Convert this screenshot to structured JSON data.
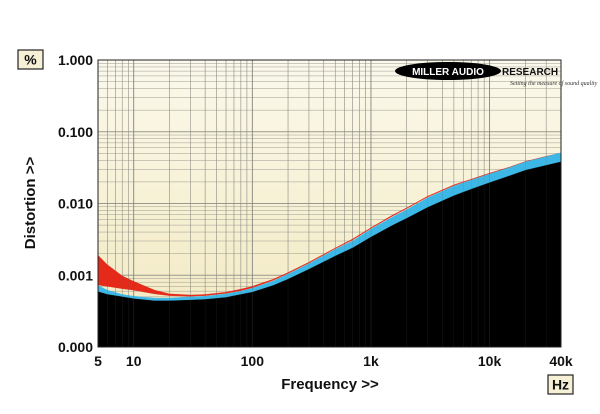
{
  "chart_data": {
    "type": "area",
    "title": "",
    "xlabel": "Frequency >>",
    "ylabel": "Distortion >>",
    "x_unit": "Hz",
    "y_unit": "%",
    "x_scale": "log",
    "y_scale": "log",
    "xlim": [
      5,
      40000
    ],
    "ylim": [
      0.0001,
      1
    ],
    "x_ticks": [
      {
        "value": 5,
        "label": "5"
      },
      {
        "value": 10,
        "label": "10"
      },
      {
        "value": 100,
        "label": "100"
      },
      {
        "value": 1000,
        "label": "1k"
      },
      {
        "value": 10000,
        "label": "10k"
      },
      {
        "value": 40000,
        "label": "40k"
      }
    ],
    "y_ticks": [
      {
        "value": 0.0001,
        "label": "0.000"
      },
      {
        "value": 0.001,
        "label": "0.001"
      },
      {
        "value": 0.01,
        "label": "0.010"
      },
      {
        "value": 0.1,
        "label": "0.100"
      },
      {
        "value": 1,
        "label": "1.000"
      }
    ],
    "grid": true,
    "series": [
      {
        "color": "#e52a1a",
        "upper": [
          [
            5,
            0.0019
          ],
          [
            6,
            0.0014
          ],
          [
            8,
            0.00098
          ],
          [
            10,
            0.00082
          ],
          [
            15,
            0.00062
          ],
          [
            20,
            0.00055
          ],
          [
            30,
            0.00053
          ],
          [
            40,
            0.00054
          ],
          [
            60,
            0.00058
          ],
          [
            80,
            0.00064
          ],
          [
            100,
            0.0007
          ],
          [
            150,
            0.00088
          ],
          [
            200,
            0.00109
          ],
          [
            300,
            0.00152
          ],
          [
            500,
            0.0024
          ],
          [
            700,
            0.0032
          ],
          [
            1000,
            0.0046
          ],
          [
            1500,
            0.0068
          ],
          [
            2000,
            0.0087
          ],
          [
            3000,
            0.0126
          ],
          [
            5000,
            0.0182
          ],
          [
            7000,
            0.0218
          ],
          [
            10000,
            0.0265
          ],
          [
            15000,
            0.0325
          ],
          [
            20000,
            0.0385
          ],
          [
            30000,
            0.0455
          ],
          [
            40000,
            0.0505
          ]
        ],
        "lower": [
          [
            5,
            0.00073
          ],
          [
            6,
            0.0007
          ],
          [
            8,
            0.00065
          ],
          [
            10,
            0.00062
          ],
          [
            15,
            0.00055
          ],
          [
            20,
            0.00052
          ],
          [
            30,
            0.00051
          ],
          [
            40,
            0.00052
          ],
          [
            60,
            0.00056
          ],
          [
            80,
            0.00061
          ],
          [
            100,
            0.00067
          ],
          [
            150,
            0.00085
          ],
          [
            200,
            0.00106
          ],
          [
            300,
            0.00148
          ],
          [
            500,
            0.00235
          ],
          [
            700,
            0.0031
          ],
          [
            1000,
            0.0045
          ],
          [
            1500,
            0.0066
          ],
          [
            2000,
            0.0085
          ],
          [
            3000,
            0.0123
          ],
          [
            5000,
            0.0178
          ],
          [
            7000,
            0.0214
          ],
          [
            10000,
            0.026
          ],
          [
            15000,
            0.032
          ],
          [
            20000,
            0.038
          ],
          [
            30000,
            0.045
          ],
          [
            40000,
            0.05
          ]
        ]
      },
      {
        "color": "#3db8e6",
        "upper": [
          [
            5,
            0.00072
          ],
          [
            6,
            0.00062
          ],
          [
            8,
            0.00054
          ],
          [
            10,
            0.00051
          ],
          [
            15,
            0.00048
          ],
          [
            20,
            0.00048
          ],
          [
            30,
            0.0005
          ],
          [
            40,
            0.00051
          ],
          [
            60,
            0.00055
          ],
          [
            80,
            0.0006
          ],
          [
            100,
            0.00066
          ],
          [
            150,
            0.00083
          ],
          [
            200,
            0.00104
          ],
          [
            300,
            0.00145
          ],
          [
            500,
            0.0023
          ],
          [
            700,
            0.003
          ],
          [
            1000,
            0.0044
          ],
          [
            1500,
            0.0064
          ],
          [
            2000,
            0.0082
          ],
          [
            3000,
            0.012
          ],
          [
            5000,
            0.0175
          ],
          [
            7000,
            0.0212
          ],
          [
            10000,
            0.0258
          ],
          [
            15000,
            0.032
          ],
          [
            20000,
            0.038
          ],
          [
            30000,
            0.045
          ],
          [
            40000,
            0.051
          ]
        ],
        "lower": [
          [
            5,
            0.00059
          ],
          [
            6,
            0.00054
          ],
          [
            8,
            0.0005
          ],
          [
            10,
            0.00047
          ],
          [
            15,
            0.00044
          ],
          [
            20,
            0.00044
          ],
          [
            30,
            0.00045
          ],
          [
            40,
            0.00046
          ],
          [
            60,
            0.00049
          ],
          [
            80,
            0.00054
          ],
          [
            100,
            0.00058
          ],
          [
            150,
            0.00072
          ],
          [
            200,
            0.00088
          ],
          [
            300,
            0.00121
          ],
          [
            500,
            0.00185
          ],
          [
            700,
            0.0024
          ],
          [
            1000,
            0.0034
          ],
          [
            1500,
            0.0049
          ],
          [
            2000,
            0.0062
          ],
          [
            3000,
            0.0088
          ],
          [
            5000,
            0.0128
          ],
          [
            7000,
            0.0158
          ],
          [
            10000,
            0.0195
          ],
          [
            15000,
            0.0245
          ],
          [
            20000,
            0.029
          ],
          [
            30000,
            0.034
          ],
          [
            40000,
            0.038
          ]
        ]
      },
      {
        "color": "#000000",
        "upper": [
          [
            5,
            0.00059
          ],
          [
            6,
            0.00054
          ],
          [
            8,
            0.0005
          ],
          [
            10,
            0.00047
          ],
          [
            15,
            0.00044
          ],
          [
            20,
            0.00044
          ],
          [
            30,
            0.00045
          ],
          [
            40,
            0.00046
          ],
          [
            60,
            0.00049
          ],
          [
            80,
            0.00054
          ],
          [
            100,
            0.00058
          ],
          [
            150,
            0.00072
          ],
          [
            200,
            0.00088
          ],
          [
            300,
            0.00121
          ],
          [
            500,
            0.00185
          ],
          [
            700,
            0.0024
          ],
          [
            1000,
            0.0034
          ],
          [
            1500,
            0.0049
          ],
          [
            2000,
            0.0062
          ],
          [
            3000,
            0.0088
          ],
          [
            5000,
            0.0128
          ],
          [
            7000,
            0.0158
          ],
          [
            10000,
            0.0195
          ],
          [
            15000,
            0.0245
          ],
          [
            20000,
            0.029
          ],
          [
            30000,
            0.034
          ],
          [
            40000,
            0.038
          ]
        ],
        "lower": [
          [
            5,
            0.0001
          ],
          [
            40000,
            0.0001
          ]
        ]
      }
    ]
  },
  "logo": {
    "brand_left": "MILLER AUDIO",
    "brand_right": "RESEARCH",
    "tagline": "Setting the measure of sound quality"
  },
  "colors": {
    "plot_top": "#fbf9ec",
    "plot_bottom": "#f2e8be",
    "grid": "#9a9a90"
  }
}
